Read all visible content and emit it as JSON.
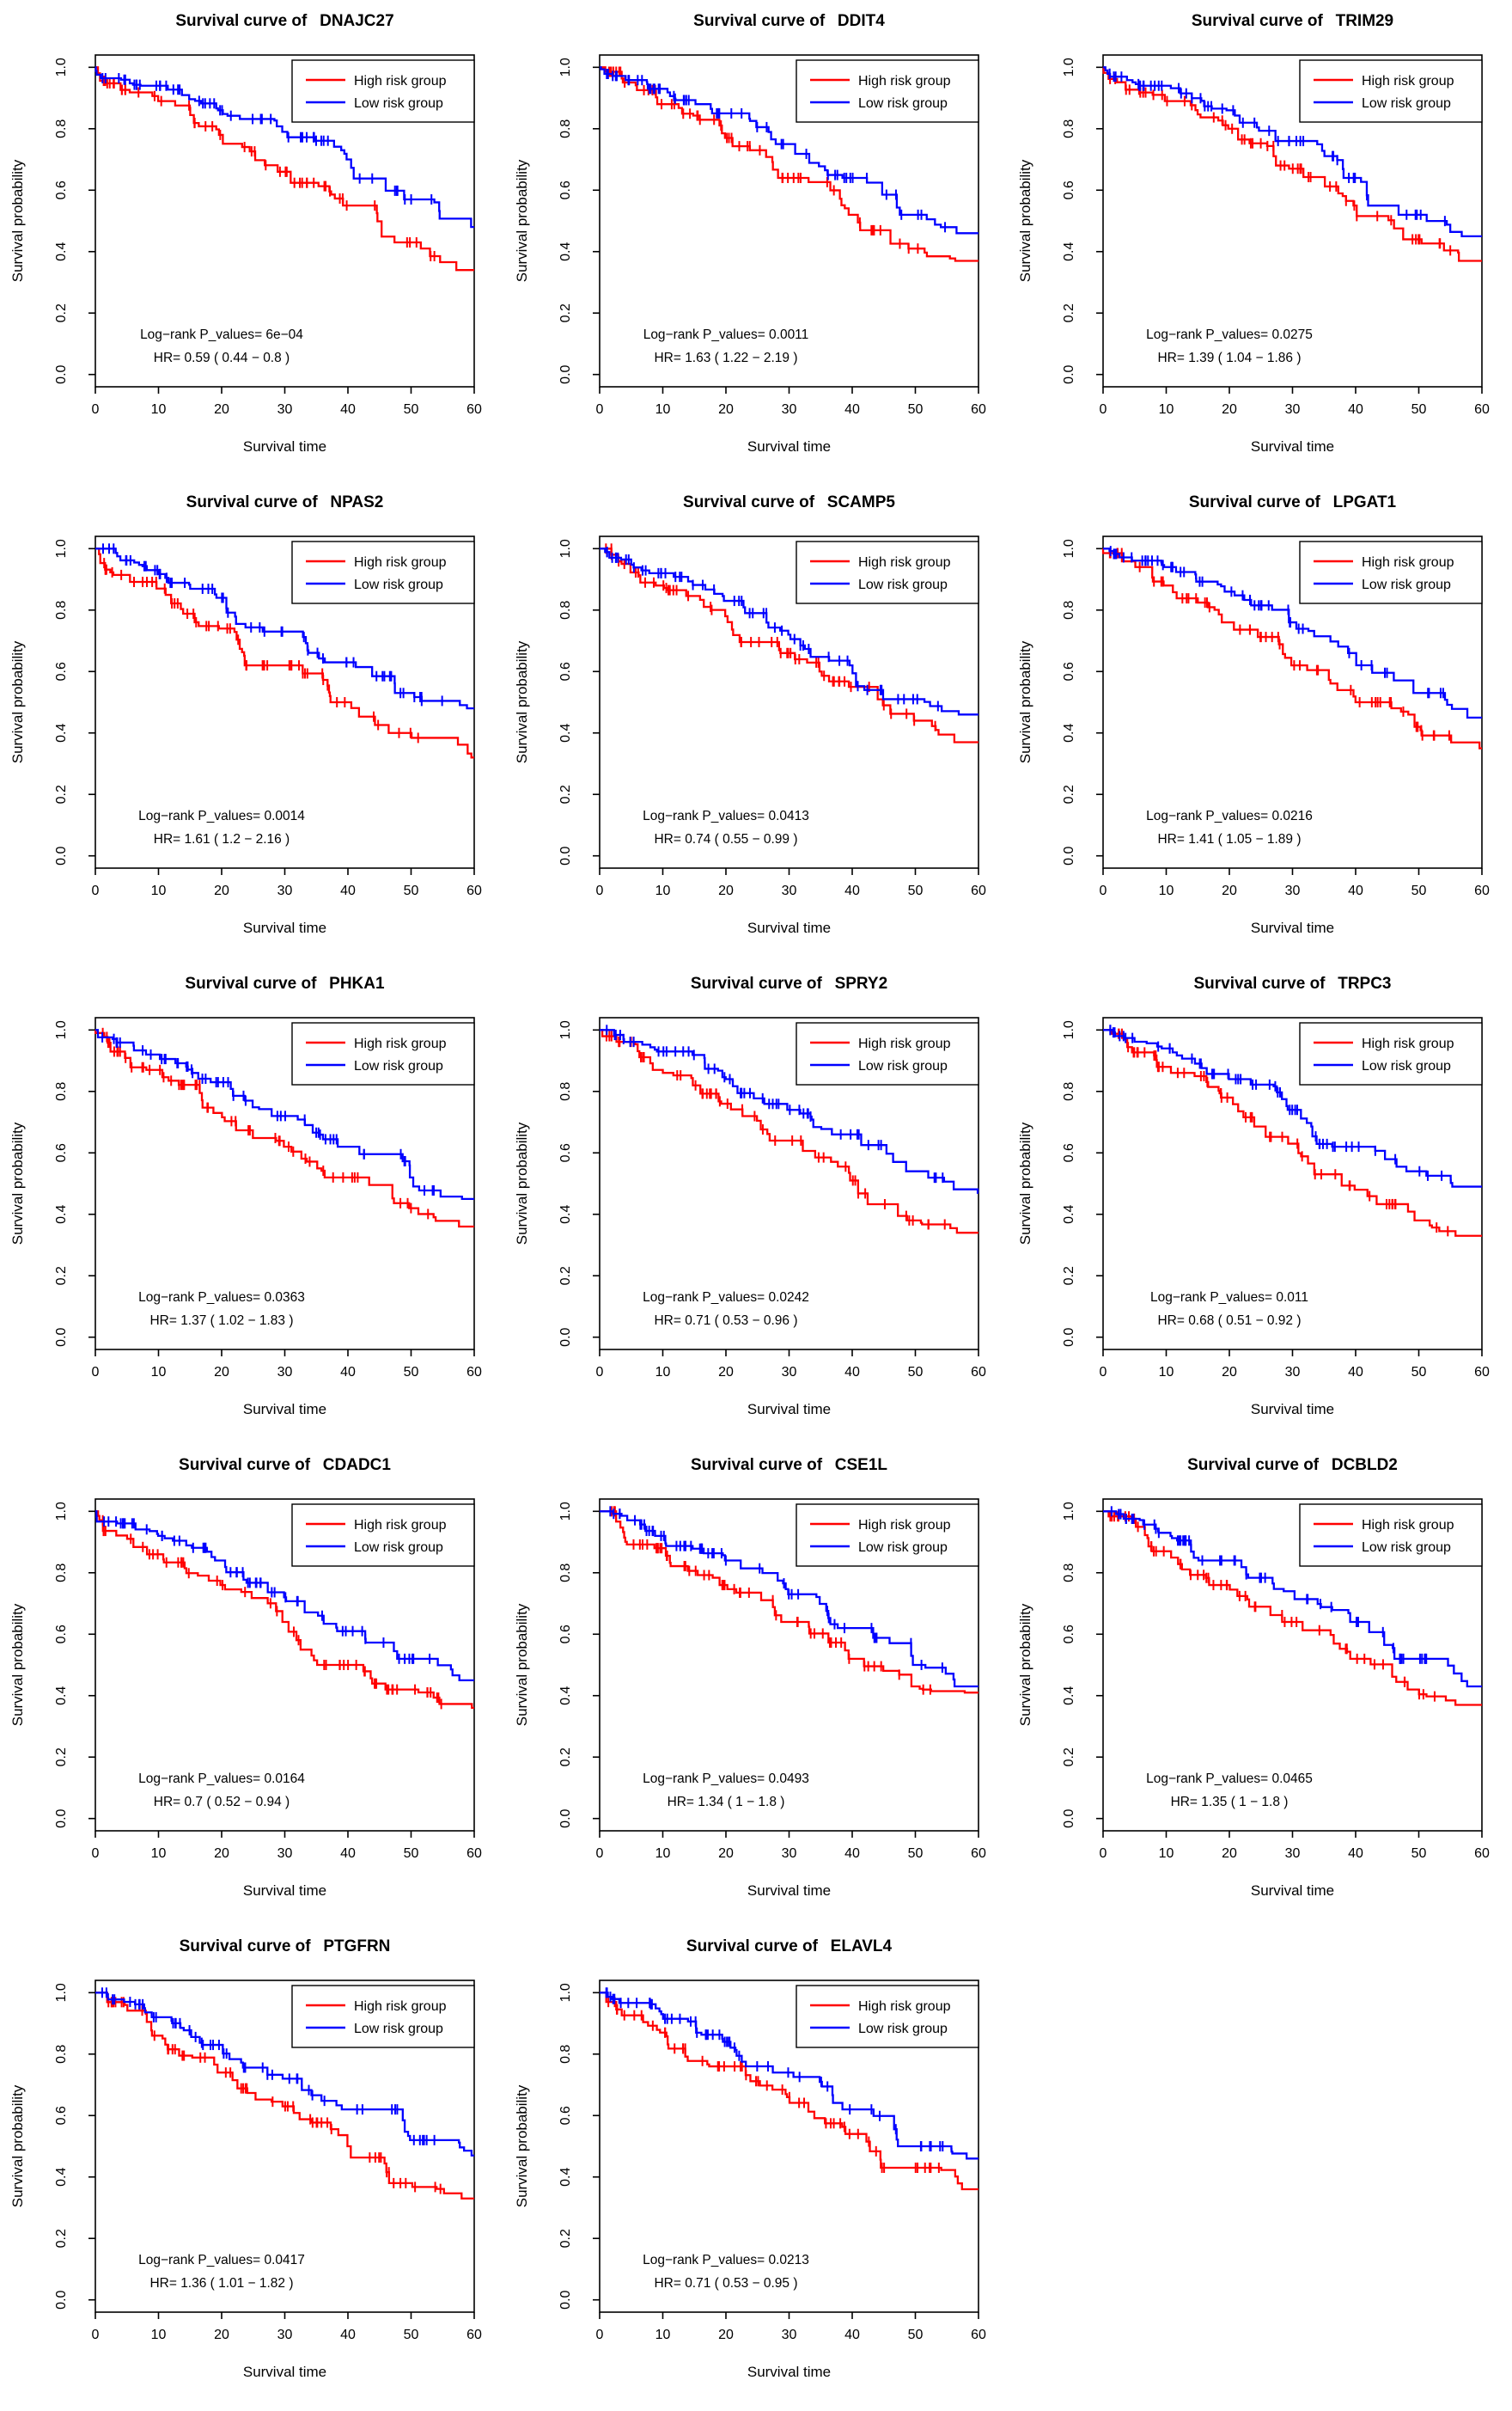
{
  "figure": {
    "background": "#FFFFFF",
    "title_prefix": "Survival curve of",
    "legend": {
      "position": "topright",
      "items": [
        {
          "label": "High risk group",
          "color": "#FF0000"
        },
        {
          "label": "Low risk group",
          "color": "#0000FF"
        }
      ]
    },
    "axes": {
      "x_label": "Survival time",
      "y_label": "Survival probability",
      "x_ticks": [
        0,
        10,
        20,
        30,
        40,
        50,
        60
      ],
      "y_ticks": [
        "0.0",
        "0.2",
        "0.4",
        "0.6",
        "0.8",
        "1.0"
      ],
      "x_range": [
        0,
        60
      ],
      "y_range": [
        0,
        1
      ],
      "grid": false
    },
    "colors": {
      "high_risk": "#FF0000",
      "low_risk": "#0000FF",
      "axis": "#000000"
    }
  },
  "chart_data": [
    {
      "type": "line",
      "km_step": true,
      "gene": "DNAJC27",
      "title": "Survival curve of  DNAJC27",
      "stats": {
        "line1": "Log−rank P_values= 6e−04",
        "line2": "HR= 0.59 ( 0.44 − 0.8 )",
        "p_value": "6e−04",
        "hr": "0.59",
        "ci": "0.44 − 0.8"
      },
      "x": [
        0,
        10,
        20,
        30,
        40,
        50,
        60
      ],
      "series": [
        {
          "name": "High risk group",
          "color": "#FF0000",
          "values": [
            1,
            0.89,
            0.78,
            0.66,
            0.55,
            0.43,
            0.34
          ]
        },
        {
          "name": "Low risk group",
          "color": "#0000FF",
          "values": [
            1,
            0.94,
            0.86,
            0.79,
            0.7,
            0.57,
            0.48
          ]
        }
      ]
    },
    {
      "type": "line",
      "km_step": true,
      "gene": "DDIT4",
      "title": "Survival curve of  DDIT4",
      "stats": {
        "line1": "Log−rank P_values= 0.0011",
        "line2": "HR= 1.63 ( 1.22 − 2.19 )",
        "p_value": "0.0011",
        "hr": "1.63",
        "ci": "1.22 − 2.19"
      },
      "x": [
        0,
        10,
        20,
        30,
        40,
        50,
        60
      ],
      "series": [
        {
          "name": "High risk group",
          "color": "#FF0000",
          "values": [
            1,
            0.88,
            0.77,
            0.64,
            0.52,
            0.41,
            0.37
          ]
        },
        {
          "name": "Low risk group",
          "color": "#0000FF",
          "values": [
            1,
            0.93,
            0.85,
            0.75,
            0.64,
            0.52,
            0.46
          ]
        }
      ]
    },
    {
      "type": "line",
      "km_step": true,
      "gene": "TRIM29",
      "title": "Survival curve of  TRIM29",
      "stats": {
        "line1": "Log−rank P_values= 0.0275",
        "line2": "HR= 1.39 ( 1.04 − 1.86 )",
        "p_value": "0.0275",
        "hr": "1.39",
        "ci": "1.04 − 1.86"
      },
      "x": [
        0,
        10,
        20,
        30,
        40,
        50,
        60
      ],
      "series": [
        {
          "name": "High risk group",
          "color": "#FF0000",
          "values": [
            1,
            0.89,
            0.8,
            0.67,
            0.55,
            0.44,
            0.37
          ]
        },
        {
          "name": "Low risk group",
          "color": "#0000FF",
          "values": [
            1,
            0.94,
            0.86,
            0.76,
            0.64,
            0.52,
            0.45
          ]
        }
      ]
    },
    {
      "type": "line",
      "km_step": true,
      "gene": "NPAS2",
      "title": "Survival curve of  NPAS2",
      "stats": {
        "line1": "Log−rank P_values= 0.0014",
        "line2": "HR= 1.61 ( 1.2 − 2.16 )",
        "p_value": "0.0014",
        "hr": "1.61",
        "ci": "1.2 − 2.16"
      },
      "x": [
        0,
        10,
        20,
        30,
        40,
        50,
        60
      ],
      "series": [
        {
          "name": "High risk group",
          "color": "#FF0000",
          "values": [
            1,
            0.87,
            0.74,
            0.62,
            0.5,
            0.4,
            0.32
          ]
        },
        {
          "name": "Low risk group",
          "color": "#0000FF",
          "values": [
            1,
            0.93,
            0.84,
            0.73,
            0.63,
            0.53,
            0.48
          ]
        }
      ]
    },
    {
      "type": "line",
      "km_step": true,
      "gene": "SCAMP5",
      "title": "Survival curve of  SCAMP5",
      "stats": {
        "line1": "Log−rank P_values= 0.0413",
        "line2": "HR= 0.74 ( 0.55 − 0.99 )",
        "p_value": "0.0413",
        "hr": "0.74",
        "ci": "0.55 − 0.99"
      },
      "x": [
        0,
        10,
        20,
        30,
        40,
        50,
        60
      ],
      "series": [
        {
          "name": "High risk group",
          "color": "#FF0000",
          "values": [
            1,
            0.88,
            0.78,
            0.66,
            0.55,
            0.44,
            0.37
          ]
        },
        {
          "name": "Low risk group",
          "color": "#0000FF",
          "values": [
            1,
            0.92,
            0.83,
            0.72,
            0.62,
            0.51,
            0.46
          ]
        }
      ]
    },
    {
      "type": "line",
      "km_step": true,
      "gene": "LPGAT1",
      "title": "Survival curve of  LPGAT1",
      "stats": {
        "line1": "Log−rank P_values= 0.0216",
        "line2": "HR= 1.41 ( 1.05 − 1.89 )",
        "p_value": "0.0216",
        "hr": "1.41",
        "ci": "1.05 − 1.89"
      },
      "x": [
        0,
        10,
        20,
        30,
        40,
        50,
        60
      ],
      "series": [
        {
          "name": "High risk group",
          "color": "#FF0000",
          "values": [
            1,
            0.88,
            0.76,
            0.62,
            0.5,
            0.42,
            0.35
          ]
        },
        {
          "name": "Low risk group",
          "color": "#0000FF",
          "values": [
            1,
            0.94,
            0.86,
            0.76,
            0.66,
            0.53,
            0.45
          ]
        }
      ]
    },
    {
      "type": "line",
      "km_step": true,
      "gene": "PHKA1",
      "title": "Survival curve of  PHKA1",
      "stats": {
        "line1": "Log−rank P_values= 0.0363",
        "line2": "HR= 1.37 ( 1.02 − 1.83 )",
        "p_value": "0.0363",
        "hr": "1.37",
        "ci": "1.02 − 1.83"
      },
      "x": [
        0,
        10,
        20,
        30,
        40,
        50,
        60
      ],
      "series": [
        {
          "name": "High risk group",
          "color": "#FF0000",
          "values": [
            1,
            0.87,
            0.73,
            0.62,
            0.52,
            0.42,
            0.36
          ]
        },
        {
          "name": "Low risk group",
          "color": "#0000FF",
          "values": [
            1,
            0.92,
            0.83,
            0.72,
            0.62,
            0.52,
            0.45
          ]
        }
      ]
    },
    {
      "type": "line",
      "km_step": true,
      "gene": "SPRY2",
      "title": "Survival curve of  SPRY2",
      "stats": {
        "line1": "Log−rank P_values= 0.0242",
        "line2": "HR= 0.71 ( 0.53 − 0.96 )",
        "p_value": "0.0242",
        "hr": "0.71",
        "ci": "0.53 − 0.96"
      },
      "x": [
        0,
        10,
        20,
        30,
        40,
        50,
        60
      ],
      "series": [
        {
          "name": "High risk group",
          "color": "#FF0000",
          "values": [
            1,
            0.87,
            0.76,
            0.64,
            0.51,
            0.38,
            0.34
          ]
        },
        {
          "name": "Low risk group",
          "color": "#0000FF",
          "values": [
            1,
            0.93,
            0.84,
            0.74,
            0.66,
            0.54,
            0.47
          ]
        }
      ]
    },
    {
      "type": "line",
      "km_step": true,
      "gene": "TRPC3",
      "title": "Survival curve of  TRPC3",
      "stats": {
        "line1": "Log−rank P_values= 0.011",
        "line2": "HR= 0.68 ( 0.51 − 0.92 )",
        "p_value": "0.011",
        "hr": "0.68",
        "ci": "0.51 − 0.92"
      },
      "x": [
        0,
        10,
        20,
        30,
        40,
        50,
        60
      ],
      "series": [
        {
          "name": "High risk group",
          "color": "#FF0000",
          "values": [
            1,
            0.88,
            0.78,
            0.63,
            0.48,
            0.38,
            0.33
          ]
        },
        {
          "name": "Low risk group",
          "color": "#0000FF",
          "values": [
            1,
            0.94,
            0.84,
            0.74,
            0.62,
            0.54,
            0.49
          ]
        }
      ]
    },
    {
      "type": "line",
      "km_step": true,
      "gene": "CDADC1",
      "title": "Survival curve of  CDADC1",
      "stats": {
        "line1": "Log−rank P_values= 0.0164",
        "line2": "HR= 0.7 ( 0.52 − 0.94 )",
        "p_value": "0.0164",
        "hr": "0.7",
        "ci": "0.52 − 0.94"
      },
      "x": [
        0,
        10,
        20,
        30,
        40,
        50,
        60
      ],
      "series": [
        {
          "name": "High risk group",
          "color": "#FF0000",
          "values": [
            1,
            0.86,
            0.76,
            0.64,
            0.5,
            0.42,
            0.36
          ]
        },
        {
          "name": "Low risk group",
          "color": "#0000FF",
          "values": [
            1,
            0.92,
            0.84,
            0.72,
            0.61,
            0.52,
            0.45
          ]
        }
      ]
    },
    {
      "type": "line",
      "km_step": true,
      "gene": "CSE1L",
      "title": "Survival curve of  CSE1L",
      "stats": {
        "line1": "Log−rank P_values= 0.0493",
        "line2": "HR= 1.34 ( 1 − 1.8 )",
        "p_value": "0.0493",
        "hr": "1.34",
        "ci": "1 − 1.8"
      },
      "x": [
        0,
        10,
        20,
        30,
        40,
        50,
        60
      ],
      "series": [
        {
          "name": "High risk group",
          "color": "#FF0000",
          "values": [
            1,
            0.88,
            0.76,
            0.64,
            0.52,
            0.43,
            0.41
          ]
        },
        {
          "name": "Low risk group",
          "color": "#0000FF",
          "values": [
            1,
            0.92,
            0.84,
            0.73,
            0.62,
            0.5,
            0.43
          ]
        }
      ]
    },
    {
      "type": "line",
      "km_step": true,
      "gene": "DCBLD2",
      "title": "Survival curve of  DCBLD2",
      "stats": {
        "line1": "Log−rank P_values= 0.0465",
        "line2": "HR= 1.35 ( 1 − 1.8 )",
        "p_value": "0.0465",
        "hr": "1.35",
        "ci": "1 − 1.8"
      },
      "x": [
        0,
        10,
        20,
        30,
        40,
        50,
        60
      ],
      "series": [
        {
          "name": "High risk group",
          "color": "#FF0000",
          "values": [
            1,
            0.87,
            0.76,
            0.64,
            0.52,
            0.42,
            0.37
          ]
        },
        {
          "name": "Low risk group",
          "color": "#0000FF",
          "values": [
            1,
            0.93,
            0.84,
            0.74,
            0.64,
            0.52,
            0.43
          ]
        }
      ]
    },
    {
      "type": "line",
      "km_step": true,
      "gene": "PTGFRN",
      "title": "Survival curve of  PTGFRN",
      "stats": {
        "line1": "Log−rank P_values= 0.0417",
        "line2": "HR= 1.36 ( 1.01 − 1.82 )",
        "p_value": "0.0417",
        "hr": "1.36",
        "ci": "1.01 − 1.82"
      },
      "x": [
        0,
        10,
        20,
        30,
        40,
        50,
        60
      ],
      "series": [
        {
          "name": "High risk group",
          "color": "#FF0000",
          "values": [
            1,
            0.86,
            0.74,
            0.63,
            0.5,
            0.38,
            0.33
          ]
        },
        {
          "name": "Low risk group",
          "color": "#0000FF",
          "values": [
            1,
            0.92,
            0.83,
            0.72,
            0.62,
            0.52,
            0.47
          ]
        }
      ]
    },
    {
      "type": "line",
      "km_step": true,
      "gene": "ELAVL4",
      "title": "Survival curve of  ELAVL4",
      "stats": {
        "line1": "Log−rank P_values= 0.0213",
        "line2": "HR= 0.71 ( 0.53 − 0.95 )",
        "p_value": "0.0213",
        "hr": "0.71",
        "ci": "0.53 − 0.95"
      },
      "x": [
        0,
        10,
        20,
        30,
        40,
        50,
        60
      ],
      "series": [
        {
          "name": "High risk group",
          "color": "#FF0000",
          "values": [
            1,
            0.87,
            0.76,
            0.66,
            0.54,
            0.43,
            0.36
          ]
        },
        {
          "name": "Low risk group",
          "color": "#0000FF",
          "values": [
            1,
            0.93,
            0.84,
            0.74,
            0.62,
            0.5,
            0.46
          ]
        }
      ]
    }
  ]
}
